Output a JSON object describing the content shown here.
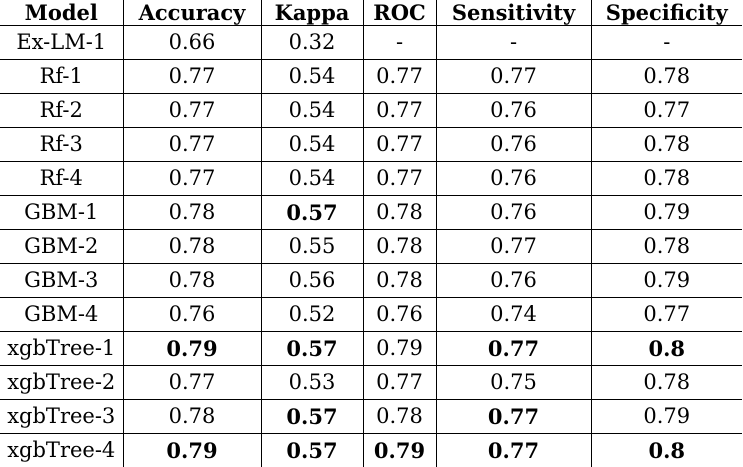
{
  "table": {
    "headers": [
      "Model",
      "Accuracy",
      "Kappa",
      "ROC",
      "Sensitivity",
      "Specificity"
    ],
    "rows": [
      {
        "cells": [
          "Ex-LM-1",
          "0.66",
          "0.32",
          "-",
          "-",
          "-"
        ],
        "bold": [
          false,
          false,
          false,
          false,
          false,
          false
        ]
      },
      {
        "cells": [
          "Rf-1",
          "0.77",
          "0.54",
          "0.77",
          "0.77",
          "0.78"
        ],
        "bold": [
          false,
          false,
          false,
          false,
          false,
          false
        ]
      },
      {
        "cells": [
          "Rf-2",
          "0.77",
          "0.54",
          "0.77",
          "0.76",
          "0.77"
        ],
        "bold": [
          false,
          false,
          false,
          false,
          false,
          false
        ]
      },
      {
        "cells": [
          "Rf-3",
          "0.77",
          "0.54",
          "0.77",
          "0.76",
          "0.78"
        ],
        "bold": [
          false,
          false,
          false,
          false,
          false,
          false
        ]
      },
      {
        "cells": [
          "Rf-4",
          "0.77",
          "0.54",
          "0.77",
          "0.76",
          "0.78"
        ],
        "bold": [
          false,
          false,
          false,
          false,
          false,
          false
        ]
      },
      {
        "cells": [
          "GBM-1",
          "0.78",
          "0.57",
          "0.78",
          "0.76",
          "0.79"
        ],
        "bold": [
          false,
          false,
          true,
          false,
          false,
          false
        ]
      },
      {
        "cells": [
          "GBM-2",
          "0.78",
          "0.55",
          "0.78",
          "0.77",
          "0.78"
        ],
        "bold": [
          false,
          false,
          false,
          false,
          false,
          false
        ]
      },
      {
        "cells": [
          "GBM-3",
          "0.78",
          "0.56",
          "0.78",
          "0.76",
          "0.79"
        ],
        "bold": [
          false,
          false,
          false,
          false,
          false,
          false
        ]
      },
      {
        "cells": [
          "GBM-4",
          "0.76",
          "0.52",
          "0.76",
          "0.74",
          "0.77"
        ],
        "bold": [
          false,
          false,
          false,
          false,
          false,
          false
        ]
      },
      {
        "cells": [
          "xgbTree-1",
          "0.79",
          "0.57",
          "0.79",
          "0.77",
          "0.8"
        ],
        "bold": [
          false,
          true,
          true,
          false,
          true,
          true
        ]
      },
      {
        "cells": [
          "xgbTree-2",
          "0.77",
          "0.53",
          "0.77",
          "0.75",
          "0.78"
        ],
        "bold": [
          false,
          false,
          false,
          false,
          false,
          false
        ]
      },
      {
        "cells": [
          "xgbTree-3",
          "0.78",
          "0.57",
          "0.78",
          "0.77",
          "0.79"
        ],
        "bold": [
          false,
          false,
          true,
          false,
          true,
          false
        ]
      },
      {
        "cells": [
          "xgbTree-4",
          "0.79",
          "0.57",
          "0.79",
          "0.77",
          "0.8"
        ],
        "bold": [
          false,
          true,
          true,
          true,
          true,
          true
        ]
      }
    ]
  }
}
